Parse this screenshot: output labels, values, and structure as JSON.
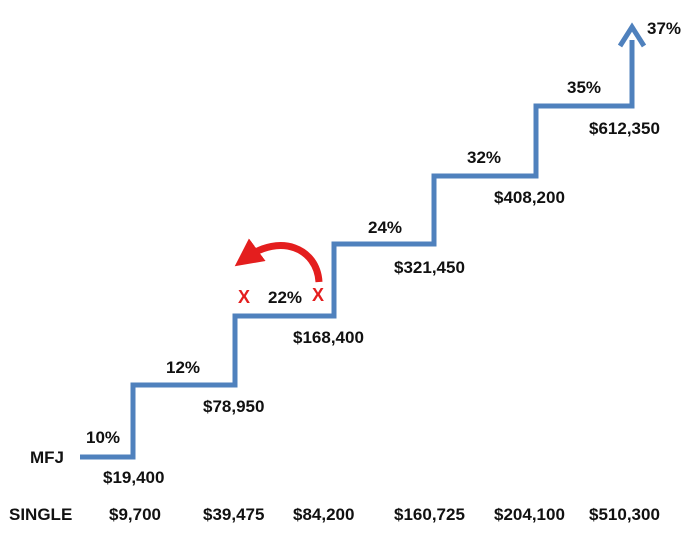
{
  "diagram": {
    "row_labels": {
      "mfj": "MFJ",
      "single": "SINGLE"
    },
    "rates": [
      "10%",
      "12%",
      "22%",
      "24%",
      "32%",
      "35%",
      "37%"
    ],
    "mfj_thresholds": [
      "$19,400",
      "$78,950",
      "$168,400",
      "$321,450",
      "$408,200",
      "$612,350"
    ],
    "single_thresholds": [
      "$9,700",
      "$39,475",
      "$84,200",
      "$160,725",
      "$204,100",
      "$510,300"
    ],
    "marks": {
      "x_left": "X",
      "x_right": "X"
    },
    "colors": {
      "step_line": "#4f81bd",
      "arrow_red": "#e41e1e",
      "text": "#111111"
    },
    "icons": {
      "step_end": "up-arrow-icon",
      "swap": "curved-left-arrow-icon"
    }
  }
}
